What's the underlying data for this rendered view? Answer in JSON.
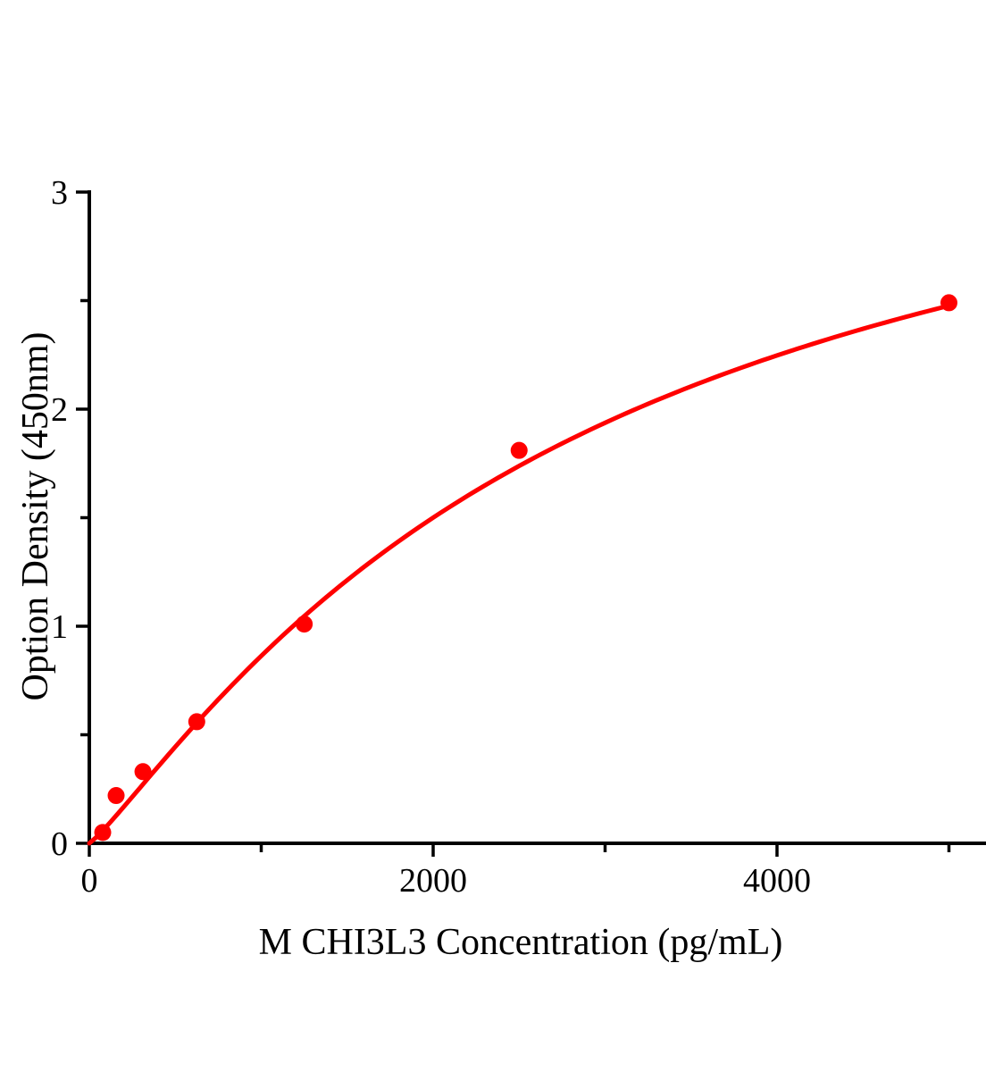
{
  "chart_data": {
    "type": "scatter",
    "title": "",
    "xlabel": "M CHI3L3 Concentration (pg/mL)",
    "ylabel": "Option Density (450nm)",
    "x": [
      78,
      156,
      312,
      625,
      1250,
      2500,
      5000
    ],
    "y": [
      0.05,
      0.22,
      0.33,
      0.56,
      1.01,
      1.81,
      2.49
    ],
    "xlim": [
      0,
      5220
    ],
    "ylim": [
      0,
      3
    ],
    "x_major_ticks": [
      0,
      2000,
      4000
    ],
    "x_major_tick_labels": [
      "0",
      "2000",
      "4000"
    ],
    "x_minor_ticks": [
      1000,
      3000,
      5000
    ],
    "y_major_ticks": [
      0,
      1,
      2,
      3
    ],
    "y_major_tick_labels": [
      "0",
      "1",
      "2",
      "3"
    ],
    "y_minor_ticks": [
      0.5,
      1.5,
      2.5
    ],
    "grid": false,
    "legend": "none",
    "marker_color": "#ff0000",
    "line_color": "#ff0000",
    "axis_color": "#000000",
    "background_color": "#ffffff",
    "fit_curve": {
      "type": "4PL",
      "min": 0,
      "max": 3.8,
      "ec50": 2900,
      "hill": 1.15,
      "draw_range": [
        0,
        5000
      ]
    }
  }
}
